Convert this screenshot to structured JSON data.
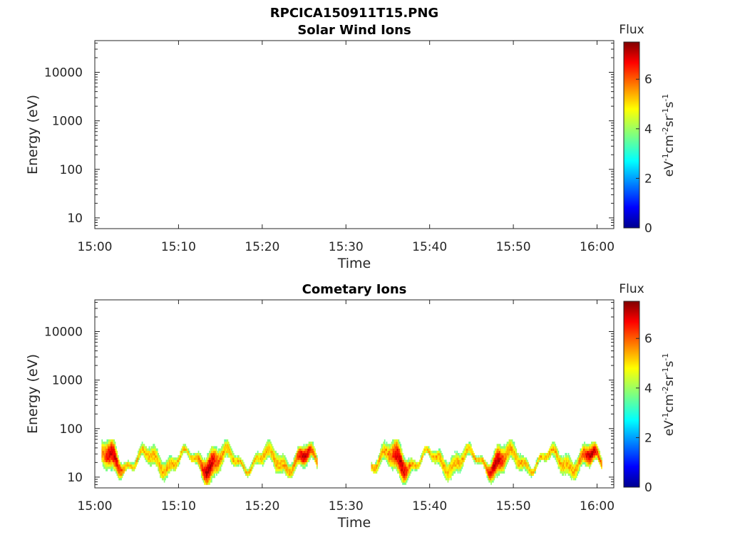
{
  "title": "RPCICA150911T15.PNG",
  "panels": [
    {
      "title": "Solar Wind Ions",
      "ylabel": "Energy (eV)",
      "xlabel": "Time",
      "colorbar_title": "Flux",
      "colorbar_label": "eV-1cm-2sr-1s-1"
    },
    {
      "title": "Cometary Ions",
      "ylabel": "Energy (eV)",
      "xlabel": "Time",
      "colorbar_title": "Flux",
      "colorbar_label": "eV-1cm-2sr-1s-1"
    }
  ],
  "colors": {
    "axis": "#262626",
    "colormap": "jet"
  },
  "chart_data": [
    {
      "type": "heatmap",
      "title": "Solar Wind Ions",
      "xlabel": "Time",
      "ylabel": "Energy (eV)",
      "x_range_minutes": [
        0,
        62
      ],
      "x_ticks": [
        "15:00",
        "15:10",
        "15:20",
        "15:30",
        "15:40",
        "15:50",
        "16:00"
      ],
      "y_scale": "log",
      "y_range": [
        6,
        45000
      ],
      "y_ticks": [
        "10",
        "100",
        "1000",
        "10000"
      ],
      "colorbar": {
        "title": "Flux",
        "range": [
          0,
          7.5
        ],
        "ticks": [
          "0",
          "2",
          "4",
          "6"
        ],
        "label": "eV-1cm-2sr-1s-1"
      },
      "segments": []
    },
    {
      "type": "heatmap",
      "title": "Cometary Ions",
      "xlabel": "Time",
      "ylabel": "Energy (eV)",
      "x_range_minutes": [
        0,
        62
      ],
      "x_ticks": [
        "15:00",
        "15:10",
        "15:20",
        "15:30",
        "15:40",
        "15:50",
        "16:00"
      ],
      "y_scale": "log",
      "y_range": [
        6,
        45000
      ],
      "y_ticks": [
        "10",
        "100",
        "1000",
        "10000"
      ],
      "colorbar": {
        "title": "Flux",
        "range": [
          0,
          7.5
        ],
        "ticks": [
          "0",
          "2",
          "4",
          "6"
        ],
        "label": "eV-1cm-2sr-1s-1"
      },
      "segments": [
        {
          "t_start": 0.8,
          "t_end": 26.5,
          "e_min": 7,
          "e_max": 60,
          "peak_flux": 7.0
        },
        {
          "t_start": 33.0,
          "t_end": 60.5,
          "e_min": 7,
          "e_max": 60,
          "peak_flux": 7.0
        }
      ],
      "data_gap": [
        26.5,
        33.0
      ]
    }
  ]
}
